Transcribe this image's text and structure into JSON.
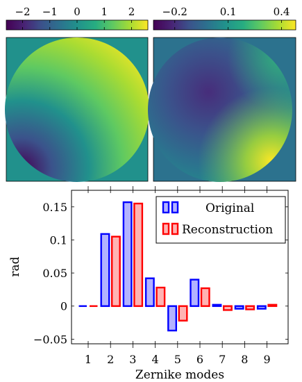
{
  "colorbars": [
    {
      "ticks": [
        {
          "value": -2,
          "label": "−2"
        },
        {
          "value": -1,
          "label": "−1"
        },
        {
          "value": 0,
          "label": "0"
        },
        {
          "value": 1,
          "label": "1"
        },
        {
          "value": 2,
          "label": "2"
        }
      ],
      "range": [
        -2.6,
        2.6
      ]
    },
    {
      "ticks": [
        {
          "value": -0.2,
          "label": "−0.2"
        },
        {
          "value": 0.1,
          "label": "0.1"
        },
        {
          "value": 0.4,
          "label": "0.4"
        }
      ],
      "range": [
        -0.32,
        0.48
      ]
    }
  ],
  "colormap": "viridis",
  "chart_data": {
    "type": "bar",
    "categories": [
      "1",
      "2",
      "3",
      "4",
      "5",
      "6",
      "7",
      "8",
      "9"
    ],
    "xlabel": "Zernike modes",
    "ylabel": "rad",
    "ylim": [
      -0.057,
      0.175
    ],
    "yticks": [
      {
        "value": -0.05,
        "label": "−0.05"
      },
      {
        "value": 0,
        "label": "0"
      },
      {
        "value": 0.05,
        "label": "0.05"
      },
      {
        "value": 0.1,
        "label": "0.1"
      },
      {
        "value": 0.15,
        "label": "0.15"
      }
    ],
    "legend_position": "top-right",
    "grid": false,
    "series": [
      {
        "name": "Original",
        "color": "#0000ff",
        "fill": "#b3b3ff",
        "values": [
          0.0,
          0.109,
          0.157,
          0.042,
          -0.037,
          0.04,
          0.002,
          -0.004,
          -0.004
        ]
      },
      {
        "name": "Reconstruction",
        "color": "#ff0000",
        "fill": "#ffb3b3",
        "values": [
          0.0,
          0.105,
          0.155,
          0.028,
          -0.022,
          0.027,
          -0.006,
          -0.005,
          0.002
        ]
      }
    ]
  }
}
